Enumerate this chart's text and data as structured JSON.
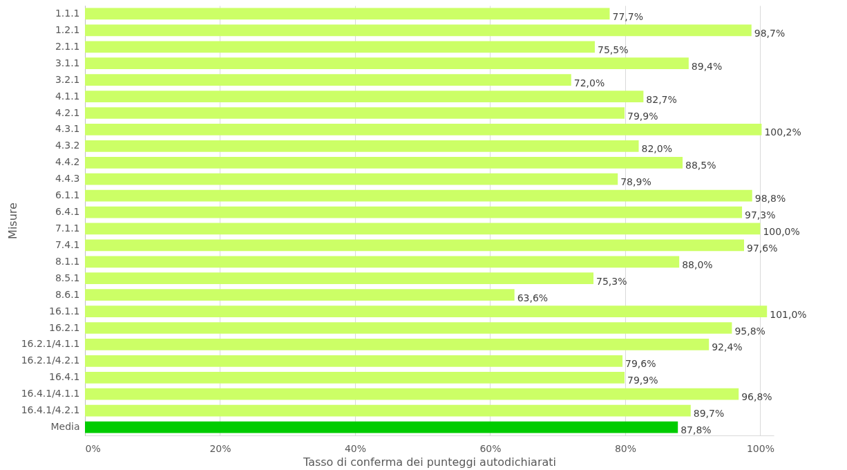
{
  "chart_data": {
    "type": "bar",
    "orientation": "horizontal",
    "xlabel": "Tasso di conferma dei punteggi autodichiarati",
    "ylabel": "Misure",
    "categories": [
      "1.1.1",
      "1.2.1",
      "2.1.1",
      "3.1.1",
      "3.2.1",
      "4.1.1",
      "4.2.1",
      "4.3.1",
      "4.3.2",
      "4.4.2",
      "4.4.3",
      "6.1.1",
      "6.4.1",
      "7.1.1",
      "7.4.1",
      "8.1.1",
      "8.5.1",
      "8.6.1",
      "16.1.1",
      "16.2.1",
      "16.2.1/4.1.1",
      "16.2.1/4.2.1",
      "16.4.1",
      "16.4.1/4.1.1",
      "16.4.1/4.2.1",
      "Media"
    ],
    "values": [
      77.7,
      98.7,
      75.5,
      89.4,
      72.0,
      82.7,
      79.9,
      100.2,
      82.0,
      88.5,
      78.9,
      98.8,
      97.3,
      100.0,
      97.6,
      88.0,
      75.3,
      63.6,
      101.0,
      95.8,
      92.4,
      79.6,
      79.9,
      96.8,
      89.7,
      87.8
    ],
    "value_labels": [
      "77,7%",
      "98,7%",
      "75,5%",
      "89,4%",
      "72,0%",
      "82,7%",
      "79,9%",
      "100,2%",
      "82,0%",
      "88,5%",
      "78,9%",
      "98,8%",
      "97,3%",
      "100,0%",
      "97,6%",
      "88,0%",
      "75,3%",
      "63,6%",
      "101,0%",
      "95,8%",
      "92,4%",
      "79,6%",
      "79,9%",
      "96,8%",
      "89,7%",
      "87,8%"
    ],
    "colors": [
      "#ccff66",
      "#ccff66",
      "#ccff66",
      "#ccff66",
      "#ccff66",
      "#ccff66",
      "#ccff66",
      "#ccff66",
      "#ccff66",
      "#ccff66",
      "#ccff66",
      "#ccff66",
      "#ccff66",
      "#ccff66",
      "#ccff66",
      "#ccff66",
      "#ccff66",
      "#ccff66",
      "#ccff66",
      "#ccff66",
      "#ccff66",
      "#ccff66",
      "#ccff66",
      "#ccff66",
      "#ccff66",
      "#00cc00"
    ],
    "xlim": [
      0,
      102
    ],
    "xticks": [
      {
        "value": 0,
        "label": "0%"
      },
      {
        "value": 20,
        "label": "20%"
      },
      {
        "value": 40,
        "label": "40%"
      },
      {
        "value": 60,
        "label": "60%"
      },
      {
        "value": 80,
        "label": "80%"
      },
      {
        "value": 100,
        "label": "100%"
      }
    ],
    "grid": "x"
  }
}
